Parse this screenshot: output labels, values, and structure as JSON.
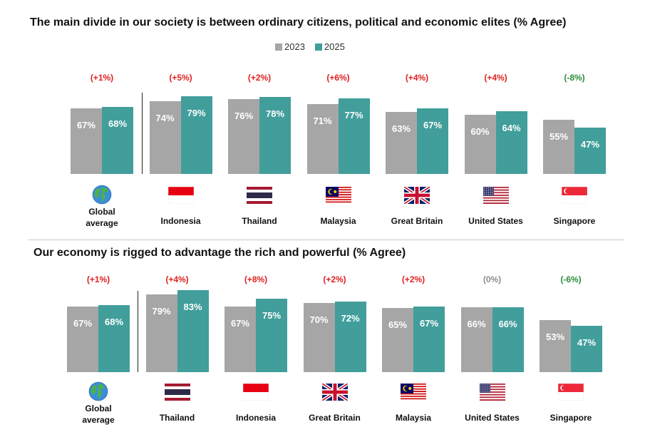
{
  "colors": {
    "c2023": "#a6a6a6",
    "c2025": "#419e9b",
    "increase": "#e02020",
    "decrease": "#2e8b3a",
    "neutral": "#8c8c8c"
  },
  "legend": {
    "label_2023": "2023",
    "label_2025": "2025"
  },
  "chart_data": [
    {
      "type": "bar",
      "title": "The main divide in our society is between ordinary citizens, political and economic elites (% Agree)",
      "series_names": [
        "2023",
        "2025"
      ],
      "groups": [
        {
          "name": "Global average",
          "flag": "globe-icon",
          "v2023": 67,
          "v2025": 68,
          "label2023": "67%",
          "label2025": "68%",
          "change": "(+1%)",
          "change_type": "increase"
        },
        {
          "name": "Indonesia",
          "flag": "indonesia-flag-icon",
          "v2023": 74,
          "v2025": 79,
          "label2023": "74%",
          "label2025": "79%",
          "change": "(+5%)",
          "change_type": "increase"
        },
        {
          "name": "Thailand",
          "flag": "thailand-flag-icon",
          "v2023": 76,
          "v2025": 78,
          "label2023": "76%",
          "label2025": "78%",
          "change": "(+2%)",
          "change_type": "increase"
        },
        {
          "name": "Malaysia",
          "flag": "malaysia-flag-icon",
          "v2023": 71,
          "v2025": 77,
          "label2023": "71%",
          "label2025": "77%",
          "change": "(+6%)",
          "change_type": "increase"
        },
        {
          "name": "Great Britain",
          "flag": "uk-flag-icon",
          "v2023": 63,
          "v2025": 67,
          "label2023": "63%",
          "label2025": "67%",
          "change": "(+4%)",
          "change_type": "increase"
        },
        {
          "name": "United States",
          "flag": "us-flag-icon",
          "v2023": 60,
          "v2025": 64,
          "label2023": "60%",
          "label2025": "64%",
          "change": "(+4%)",
          "change_type": "increase"
        },
        {
          "name": "Singapore",
          "flag": "singapore-flag-icon",
          "v2023": 55,
          "v2025": 47,
          "label2023": "55%",
          "label2025": "47%",
          "change": "(-8%)",
          "change_type": "decrease"
        }
      ]
    },
    {
      "type": "bar",
      "title": "Our economy is rigged to advantage the rich and powerful (% Agree)",
      "series_names": [
        "2023",
        "2025"
      ],
      "groups": [
        {
          "name": "Global average",
          "flag": "globe-icon",
          "v2023": 67,
          "v2025": 68,
          "label2023": "67%",
          "label2025": "68%",
          "change": "(+1%)",
          "change_type": "increase"
        },
        {
          "name": "Thailand",
          "flag": "thailand-flag-icon",
          "v2023": 79,
          "v2025": 83,
          "label2023": "79%",
          "label2025": "83%",
          "change": "(+4%)",
          "change_type": "increase"
        },
        {
          "name": "Indonesia",
          "flag": "indonesia-flag-icon",
          "v2023": 67,
          "v2025": 75,
          "label2023": "67%",
          "label2025": "75%",
          "change": "(+8%)",
          "change_type": "increase"
        },
        {
          "name": "Great Britain",
          "flag": "uk-flag-icon",
          "v2023": 70,
          "v2025": 72,
          "label2023": "70%",
          "label2025": "72%",
          "change": "(+2%)",
          "change_type": "increase"
        },
        {
          "name": "Malaysia",
          "flag": "malaysia-flag-icon",
          "v2023": 65,
          "v2025": 67,
          "label2023": "65%",
          "label2025": "67%",
          "change": "(+2%)",
          "change_type": "increase"
        },
        {
          "name": "United States",
          "flag": "us-flag-icon",
          "v2023": 66,
          "v2025": 66,
          "label2023": "66%",
          "label2025": "66%",
          "change": "(0%)",
          "change_type": "neutral"
        },
        {
          "name": "Singapore",
          "flag": "singapore-flag-icon",
          "v2023": 53,
          "v2025": 47,
          "label2023": "53%",
          "label2025": "47%",
          "change": "(-6%)",
          "change_type": "decrease"
        }
      ]
    }
  ]
}
